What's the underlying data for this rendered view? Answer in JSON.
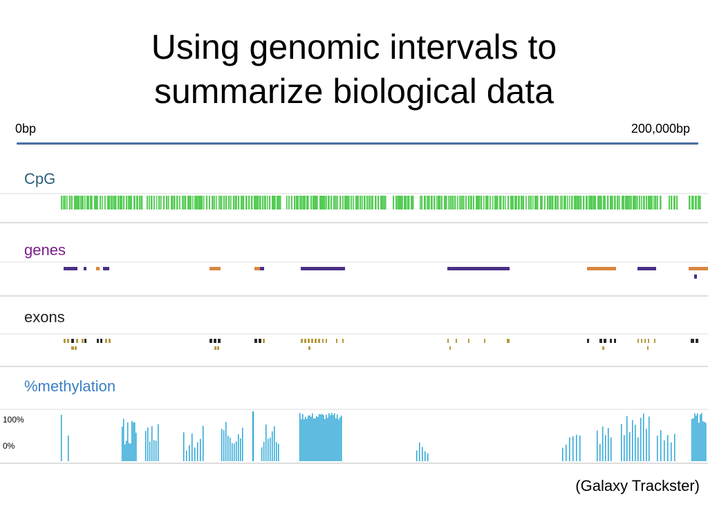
{
  "slide": {
    "title_line1": "Using genomic intervals to",
    "title_line2": "summarize biological data",
    "credit": "(Galaxy Trackster)"
  },
  "scale": {
    "start_label": "0bp",
    "end_label": "200,000bp"
  },
  "tracks": {
    "cpg": {
      "label": "CpG",
      "color": "#2e9e3e"
    },
    "genes": {
      "label": "genes",
      "color": "#7a1f8a"
    },
    "exons": {
      "label": "exons",
      "color": "#222222"
    },
    "methylation": {
      "label": "%methylation",
      "color": "#3a7fc4",
      "y_max_label": "100%",
      "y_min_label": "0%"
    }
  },
  "colors": {
    "cpg_feature": "#55cc55",
    "gene_purple": "#4b2f86",
    "gene_orange": "#d9863f",
    "exon_olive": "#b79a3e",
    "exon_dark": "#2a2a2a",
    "methylation_bar": "#2aa6d6",
    "track_border": "#d9d9d9"
  }
}
